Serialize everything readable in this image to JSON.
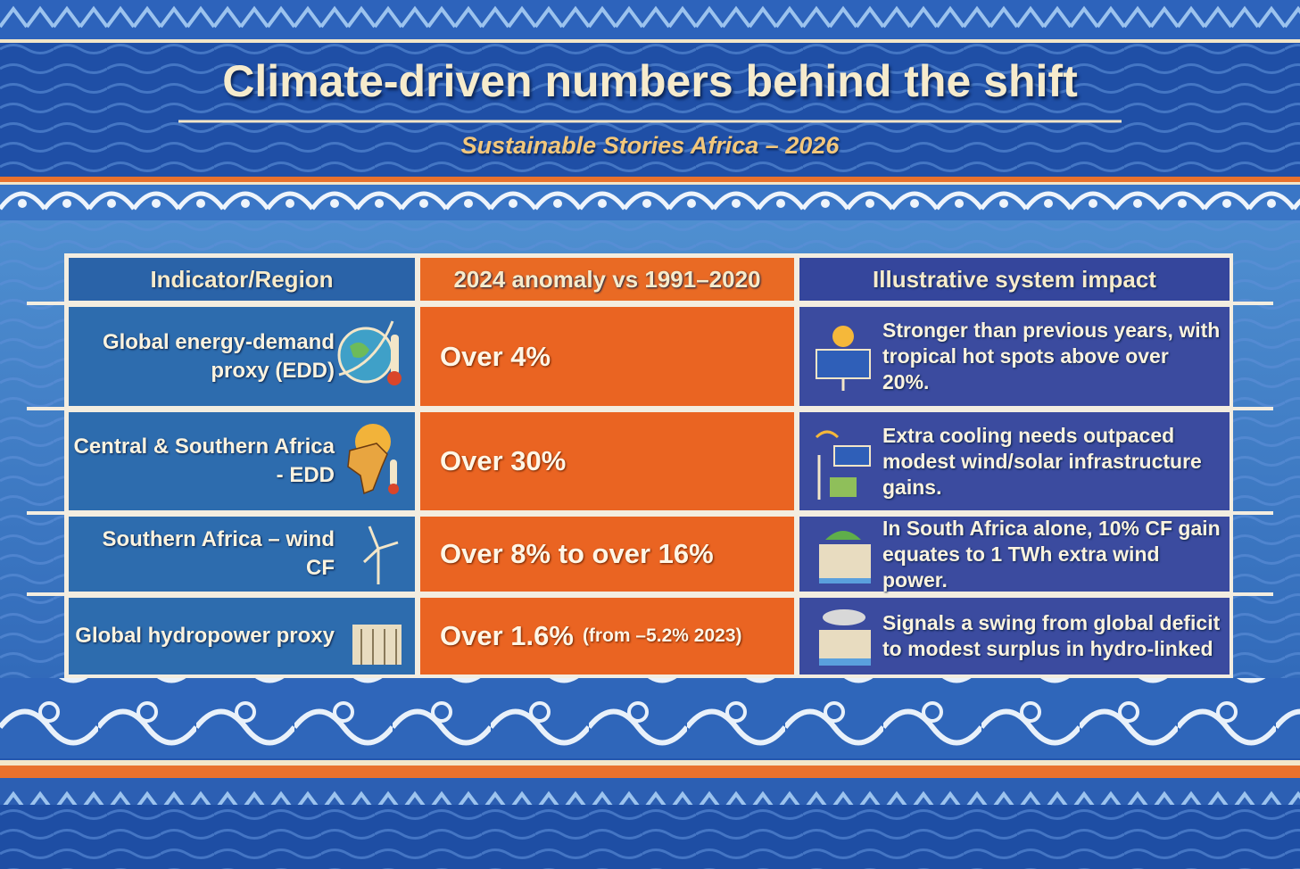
{
  "header": {
    "title": "Climate-driven numbers behind the shift",
    "subtitle": "Sustainable Stories Africa – 2026"
  },
  "table": {
    "columns": [
      "Indicator/Region",
      "2024 anomaly vs 1991–2020",
      "Illustrative system impact"
    ],
    "rows": [
      [
        "Global energy-demand proxy (EDD)",
        "Over 4%",
        "Stronger than previous years, with tropical hot spots above over 20%."
      ],
      [
        "Central & Southern Africa - EDD",
        "Over 30%",
        "Extra cooling needs outpaced modest wind/solar infrastructure gains."
      ],
      [
        "Southern Africa – wind CF",
        "Over 8% to over 16%",
        "In South Africa alone, 10% CF gain equates to 1 TWh extra wind power."
      ],
      [
        "Global hydropower proxy",
        [
          "Over 1.6%",
          "(from –5.2% 2023)"
        ],
        "Signals a swing from global deficit to modest surplus in hydro-linked"
      ]
    ]
  }
}
